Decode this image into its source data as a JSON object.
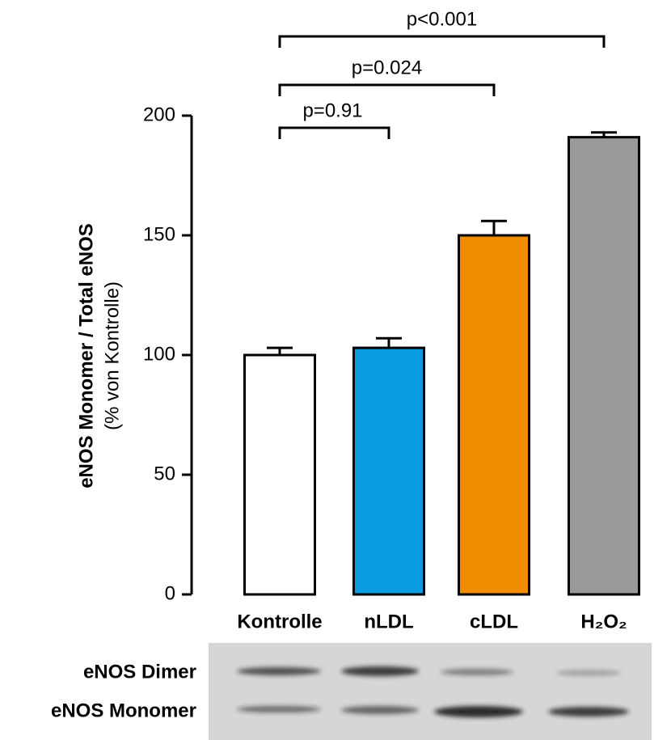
{
  "chart_data": {
    "type": "bar",
    "y_label": "eNOS Monomer / Total eNOS",
    "y_sublabel": "(% von Kontrolle)",
    "categories": [
      "Kontrolle",
      "nLDL",
      "cLDL",
      "H₂O₂"
    ],
    "values": [
      100,
      103,
      150,
      191
    ],
    "errors": [
      3,
      4,
      6,
      2
    ],
    "colors": [
      "#ffffff",
      "#0a9be0",
      "#f08c00",
      "#999999"
    ],
    "ylim": [
      0,
      200
    ],
    "yticks": [
      0,
      50,
      100,
      150,
      200
    ],
    "annotations": [
      "p=0.91",
      "p=0.024",
      "p<0.001"
    ],
    "blot_labels": [
      "eNOS Dimer",
      "eNOS Monomer"
    ]
  }
}
